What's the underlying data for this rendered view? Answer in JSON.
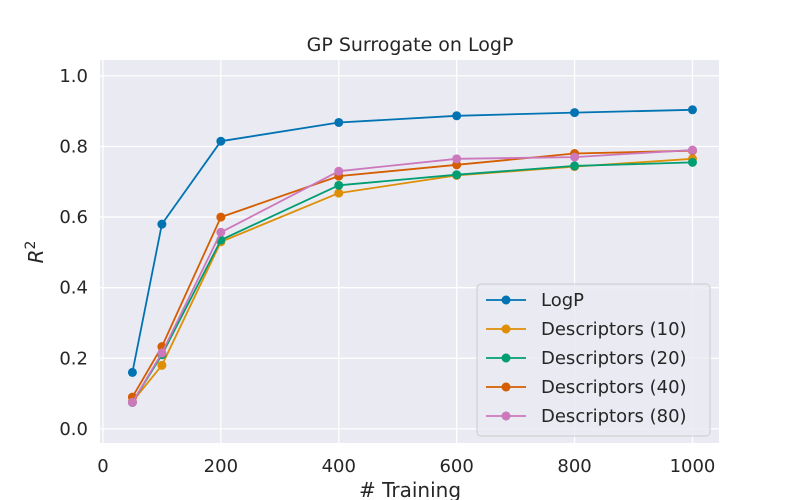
{
  "chart_data": {
    "type": "line",
    "title": "GP Surrogate on LogP",
    "xlabel": "# Training",
    "ylabel": "R",
    "ylabel_superscript": "2",
    "xlim": [
      -5,
      1045
    ],
    "ylim": [
      -0.04,
      1.045
    ],
    "xticks": [
      0,
      200,
      400,
      600,
      800,
      1000
    ],
    "yticks": [
      0.0,
      0.2,
      0.4,
      0.6,
      0.8,
      1.0
    ],
    "xtick_labels": [
      "0",
      "200",
      "400",
      "600",
      "800",
      "1000"
    ],
    "ytick_labels": [
      "0.0",
      "0.2",
      "0.4",
      "0.6",
      "0.8",
      "1.0"
    ],
    "grid": true,
    "legend_position": "lower-right",
    "x": [
      50,
      100,
      200,
      400,
      600,
      800,
      1000
    ],
    "series": [
      {
        "name": "LogP",
        "color": "#0173b2",
        "values": [
          0.16,
          0.58,
          0.815,
          0.868,
          0.887,
          0.896,
          0.904
        ]
      },
      {
        "name": "Descriptors (10)",
        "color": "#de8f05",
        "values": [
          0.077,
          0.18,
          0.53,
          0.668,
          0.718,
          0.743,
          0.765
        ]
      },
      {
        "name": "Descriptors (20)",
        "color": "#029e73",
        "values": [
          0.075,
          0.21,
          0.535,
          0.69,
          0.72,
          0.745,
          0.755
        ]
      },
      {
        "name": "Descriptors (40)",
        "color": "#d55e00",
        "values": [
          0.09,
          0.233,
          0.6,
          0.716,
          0.748,
          0.78,
          0.788
        ]
      },
      {
        "name": "Descriptors (80)",
        "color": "#cc78bc",
        "values": [
          0.075,
          0.215,
          0.557,
          0.73,
          0.765,
          0.77,
          0.79
        ]
      }
    ]
  }
}
